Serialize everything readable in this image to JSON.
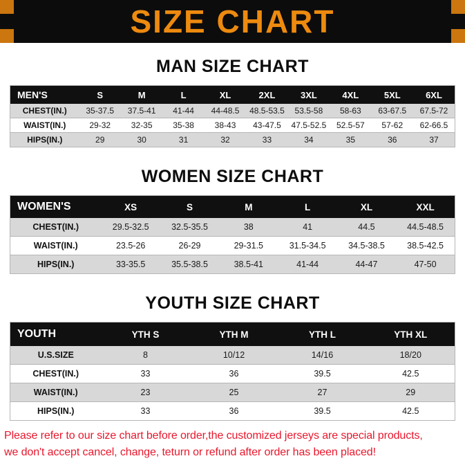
{
  "banner": {
    "title": "SIZE CHART"
  },
  "colors": {
    "accent": "#ED8A0F",
    "banner_bg": "#0C0C0C",
    "header_row_bg": "#101010",
    "row_alt_gray": "#D8D8D8",
    "footer_red": "#E8172C"
  },
  "sections": [
    {
      "title": "MAN SIZE CHART",
      "table": {
        "header": [
          "MEN'S",
          "S",
          "M",
          "L",
          "XL",
          "2XL",
          "3XL",
          "4XL",
          "5XL",
          "6XL"
        ],
        "rows": [
          {
            "label": "CHEST(IN.)",
            "values": [
              "35-37.5",
              "37.5-41",
              "41-44",
              "44-48.5",
              "48.5-53.5",
              "53.5-58",
              "58-63",
              "63-67.5",
              "67.5-72"
            ]
          },
          {
            "label": "WAIST(IN.)",
            "values": [
              "29-32",
              "32-35",
              "35-38",
              "38-43",
              "43-47.5",
              "47.5-52.5",
              "52.5-57",
              "57-62",
              "62-66.5"
            ]
          },
          {
            "label": "HIPS(IN.)",
            "values": [
              "29",
              "30",
              "31",
              "32",
              "33",
              "34",
              "35",
              "36",
              "37"
            ]
          }
        ]
      }
    },
    {
      "title": "WOMEN SIZE CHART",
      "table": {
        "header": [
          "WOMEN'S",
          "XS",
          "S",
          "M",
          "L",
          "XL",
          "XXL"
        ],
        "rows": [
          {
            "label": "CHEST(IN.)",
            "values": [
              "29.5-32.5",
              "32.5-35.5",
              "38",
              "41",
              "44.5",
              "44.5-48.5"
            ]
          },
          {
            "label": "WAIST(IN.)",
            "values": [
              "23.5-26",
              "26-29",
              "29-31.5",
              "31.5-34.5",
              "34.5-38.5",
              "38.5-42.5"
            ]
          },
          {
            "label": "HIPS(IN.)",
            "values": [
              "33-35.5",
              "35.5-38.5",
              "38.5-41",
              "41-44",
              "44-47",
              "47-50"
            ]
          }
        ]
      }
    },
    {
      "title": "YOUTH SIZE CHART",
      "table": {
        "header": [
          "YOUTH",
          "YTH S",
          "YTH M",
          "YTH L",
          "YTH XL"
        ],
        "rows": [
          {
            "label": "U.S.SIZE",
            "values": [
              "8",
              "10/12",
              "14/16",
              "18/20"
            ]
          },
          {
            "label": "CHEST(IN.)",
            "values": [
              "33",
              "36",
              "39.5",
              "42.5"
            ]
          },
          {
            "label": "WAIST(IN.)",
            "values": [
              "23",
              "25",
              "27",
              "29"
            ]
          },
          {
            "label": "HIPS(IN.)",
            "values": [
              "33",
              "36",
              "39.5",
              "42.5"
            ]
          }
        ]
      }
    }
  ],
  "footer": {
    "lines": [
      "Please refer to our size chart before order,the customized jerseys are special products,",
      "we don't accept cancel, change, teturn or refund after order has been placed!"
    ]
  }
}
